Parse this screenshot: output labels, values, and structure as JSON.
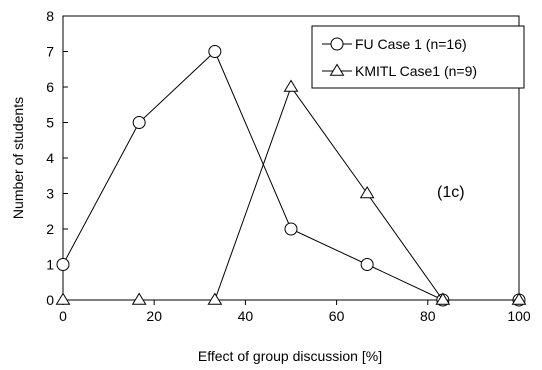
{
  "chart_data": {
    "type": "line",
    "title": "",
    "xlabel": "Effect of group discussion [%]",
    "ylabel": "Number of students",
    "xlim": [
      0,
      100
    ],
    "ylim": [
      0,
      8
    ],
    "xticks": [
      0,
      20,
      40,
      60,
      80,
      100
    ],
    "yticks": [
      0,
      1,
      2,
      3,
      4,
      5,
      6,
      7,
      8
    ],
    "grid": false,
    "legend_position": "top-right",
    "series": [
      {
        "name": "FU Case 1 (n=16)",
        "marker": "circle",
        "x": [
          0,
          16.7,
          33.3,
          50,
          66.7,
          83.3,
          100
        ],
        "y": [
          1,
          5,
          7,
          2,
          1,
          0,
          0
        ]
      },
      {
        "name": "KMITL Case1 (n=9)",
        "marker": "triangle",
        "x": [
          0,
          16.7,
          33.3,
          50,
          66.7,
          83.3,
          100
        ],
        "y": [
          0,
          0,
          0,
          6,
          3,
          0,
          0
        ]
      }
    ],
    "annotations": [
      "(1c)"
    ]
  }
}
